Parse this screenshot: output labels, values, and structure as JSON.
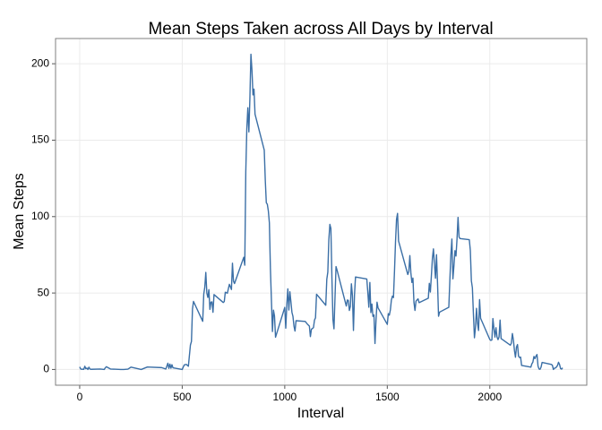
{
  "chart_data": {
    "type": "line",
    "title": "Mean Steps Taken across All Days by Interval",
    "x_label": "Interval",
    "y_label": "Mean Steps",
    "color": "#3b6fa6",
    "grid": true,
    "xlim": [
      -117.75,
      2472.75
    ],
    "xticks": [
      0,
      500,
      1000,
      1500,
      2000
    ],
    "ylim": [
      -10.3,
      216.5
    ],
    "yticks": [
      0,
      50,
      100,
      150,
      200
    ],
    "x": [
      0,
      5,
      10,
      15,
      20,
      25,
      30,
      35,
      40,
      45,
      50,
      55,
      100,
      120,
      125,
      130,
      150,
      200,
      215,
      235,
      250,
      300,
      330,
      400,
      420,
      430,
      435,
      440,
      445,
      450,
      455,
      500,
      505,
      510,
      520,
      530,
      540,
      545,
      550,
      555,
      600,
      605,
      610,
      615,
      620,
      625,
      630,
      635,
      640,
      645,
      650,
      655,
      700,
      705,
      710,
      720,
      730,
      740,
      745,
      750,
      755,
      800,
      805,
      810,
      815,
      820,
      825,
      830,
      835,
      840,
      845,
      850,
      855,
      900,
      905,
      910,
      915,
      920,
      925,
      930,
      935,
      940,
      945,
      950,
      955,
      1000,
      1005,
      1010,
      1015,
      1020,
      1025,
      1030,
      1035,
      1040,
      1045,
      1050,
      1055,
      1100,
      1110,
      1120,
      1125,
      1130,
      1140,
      1145,
      1150,
      1155,
      1200,
      1205,
      1210,
      1215,
      1220,
      1225,
      1230,
      1235,
      1240,
      1245,
      1250,
      1255,
      1300,
      1305,
      1310,
      1315,
      1320,
      1325,
      1330,
      1335,
      1340,
      1345,
      1400,
      1405,
      1410,
      1415,
      1420,
      1425,
      1430,
      1435,
      1440,
      1445,
      1450,
      1455,
      1500,
      1505,
      1510,
      1515,
      1520,
      1525,
      1530,
      1535,
      1540,
      1545,
      1550,
      1555,
      1600,
      1605,
      1610,
      1615,
      1620,
      1625,
      1630,
      1635,
      1640,
      1645,
      1650,
      1655,
      1700,
      1705,
      1710,
      1715,
      1720,
      1725,
      1730,
      1735,
      1740,
      1745,
      1750,
      1755,
      1800,
      1805,
      1810,
      1815,
      1820,
      1825,
      1830,
      1835,
      1840,
      1845,
      1850,
      1855,
      1900,
      1905,
      1910,
      1915,
      1920,
      1925,
      1930,
      1935,
      1940,
      1945,
      1950,
      1955,
      2000,
      2005,
      2010,
      2015,
      2020,
      2025,
      2030,
      2035,
      2040,
      2045,
      2050,
      2055,
      2100,
      2105,
      2110,
      2115,
      2120,
      2125,
      2130,
      2135,
      2140,
      2145,
      2150,
      2155,
      2200,
      2205,
      2210,
      2215,
      2220,
      2225,
      2230,
      2235,
      2240,
      2245,
      2250,
      2255,
      2300,
      2305,
      2310,
      2315,
      2320,
      2325,
      2330,
      2335,
      2340,
      2345,
      2350,
      2355
    ],
    "values": [
      1.7,
      0.3,
      0.1,
      0.2,
      0.1,
      2.1,
      0.5,
      0.9,
      0,
      1.5,
      0.3,
      0.1,
      0.3,
      0,
      1.1,
      1.8,
      0.3,
      0,
      0,
      0.2,
      1.5,
      0,
      1.6,
      1.2,
      0.3,
      4.1,
      0.7,
      3.5,
      0.8,
      3.1,
      1.1,
      0,
      1.6,
      3.0,
      3.3,
      2.1,
      16,
      18.3,
      39.5,
      44.5,
      31.5,
      49.3,
      53.8,
      63.5,
      50,
      47.1,
      52.2,
      39.3,
      44,
      44.2,
      37.4,
      49,
      43.8,
      44.4,
      50.5,
      49.9,
      55.7,
      52.3,
      69.5,
      57.8,
      56.2,
      73.4,
      68.2,
      129.4,
      157.5,
      171.2,
      155.4,
      177.3,
      206.2,
      195.9,
      179.6,
      183.4,
      167.0,
      143.5,
      124.0,
      109.1,
      108.1,
      103.7,
      95.9,
      66.2,
      45.2,
      24.8,
      38.8,
      35.0,
      21.1,
      40.6,
      27.0,
      42.4,
      52.7,
      38.9,
      50.8,
      44.3,
      37.4,
      34.7,
      28.3,
      25.1,
      31.9,
      31.4,
      29.7,
      28.4,
      21.5,
      26.3,
      27.4,
      32.3,
      33.8,
      49.2,
      42.0,
      59.0,
      63.7,
      85.0,
      94.9,
      92.2,
      59.7,
      32.7,
      26.6,
      47.0,
      67.3,
      65.0,
      41.5,
      45.4,
      45.2,
      38.6,
      41.3,
      56.0,
      48.4,
      25.5,
      48.6,
      60.5,
      59.2,
      50.6,
      40.7,
      56.9,
      37.2,
      42.8,
      34.7,
      35.7,
      17.0,
      32.0,
      44.0,
      40.3,
      29.5,
      36.5,
      35.5,
      39.0,
      45.4,
      48.0,
      47.0,
      63.9,
      83.0,
      98.2,
      102.1,
      84.0,
      62.1,
      64.1,
      74.5,
      63.2,
      56.9,
      59.8,
      43.9,
      38.6,
      44.7,
      45.5,
      46.2,
      43.7,
      46.6,
      56.3,
      50.7,
      61.2,
      72.7,
      78.9,
      68.9,
      59.7,
      75.1,
      56.5,
      34.8,
      37.5,
      40.7,
      58.0,
      74.7,
      85.3,
      59.3,
      67.8,
      77.7,
      74.2,
      85.3,
      99.5,
      86.6,
      85.6,
      84.9,
      77.8,
      58.0,
      53.4,
      36.3,
      20.7,
      27.4,
      40.0,
      30.2,
      25.5,
      45.7,
      33.5,
      19.6,
      19.0,
      19.3,
      33.3,
      26.8,
      21.2,
      27.3,
      21.3,
      19.5,
      21.3,
      32.3,
      20.2,
      15.9,
      17.2,
      23.5,
      19.2,
      12.5,
      8.0,
      14.7,
      16.3,
      8.7,
      7.8,
      8.1,
      2.6,
      1.5,
      3.7,
      4.8,
      8.5,
      7.1,
      8.7,
      9.8,
      2.2,
      0.3,
      0.1,
      1.6,
      4.6,
      3.3,
      2.8,
      0,
      0.8,
      1.0,
      1.6,
      2.6,
      4.7,
      3.3,
      0.6,
      0.2,
      1.1
    ]
  }
}
